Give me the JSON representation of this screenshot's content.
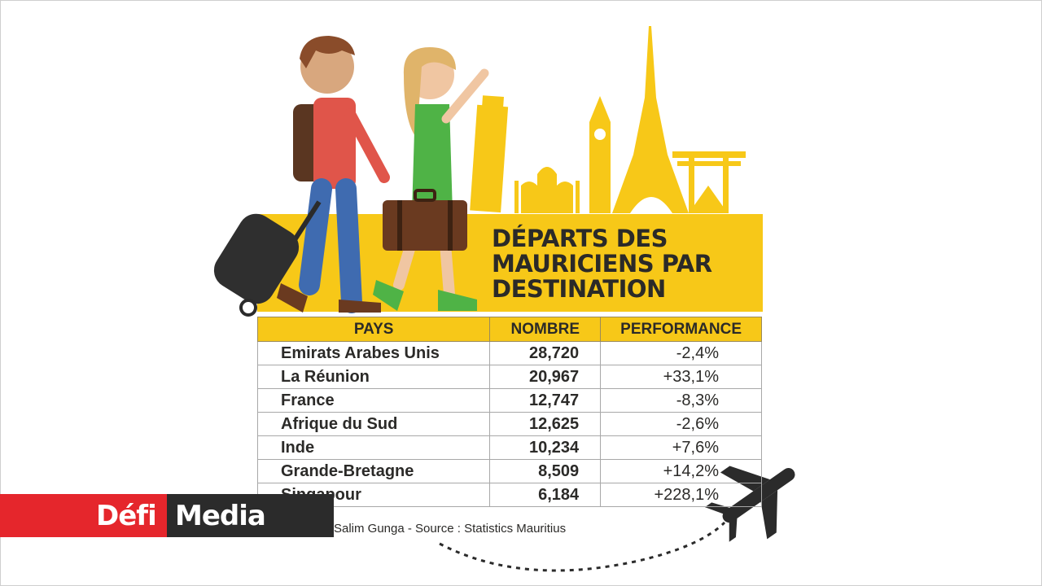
{
  "title": {
    "line1": "DÉPARTS DES",
    "line2": "MAURICIENS PAR",
    "line3": "DESTINATION"
  },
  "table": {
    "headers": [
      "PAYS",
      "NOMBRE",
      "PERFORMANCE"
    ],
    "rows": [
      {
        "pays": "Emirats Arabes Unis",
        "nombre": "28,720",
        "performance": "-2,4%"
      },
      {
        "pays": "La Réunion",
        "nombre": "20,967",
        "performance": "+33,1%"
      },
      {
        "pays": "France",
        "nombre": "12,747",
        "performance": "-8,3%"
      },
      {
        "pays": "Afrique du Sud",
        "nombre": "12,625",
        "performance": "-2,6%"
      },
      {
        "pays": "Inde",
        "nombre": "10,234",
        "performance": "+7,6%"
      },
      {
        "pays": "Grande-Bretagne",
        "nombre": "8,509",
        "performance": "+14,2%"
      },
      {
        "pays": "Singapour",
        "nombre": "6,184",
        "performance": "+228,1%"
      }
    ]
  },
  "credit": "Salim Gunga - Source : Statistics Mauritius",
  "brand": {
    "part1": "Défi",
    "part2": "Media"
  },
  "colors": {
    "accent_yellow": "#f7c818",
    "brand_red": "#e5262c",
    "brand_dark": "#2b2b2b",
    "text_dark": "#2b2a28"
  },
  "icons": [
    "traveler-man-icon",
    "traveler-woman-icon",
    "suitcase-icon",
    "landmarks-skyline",
    "airplane-icon"
  ]
}
